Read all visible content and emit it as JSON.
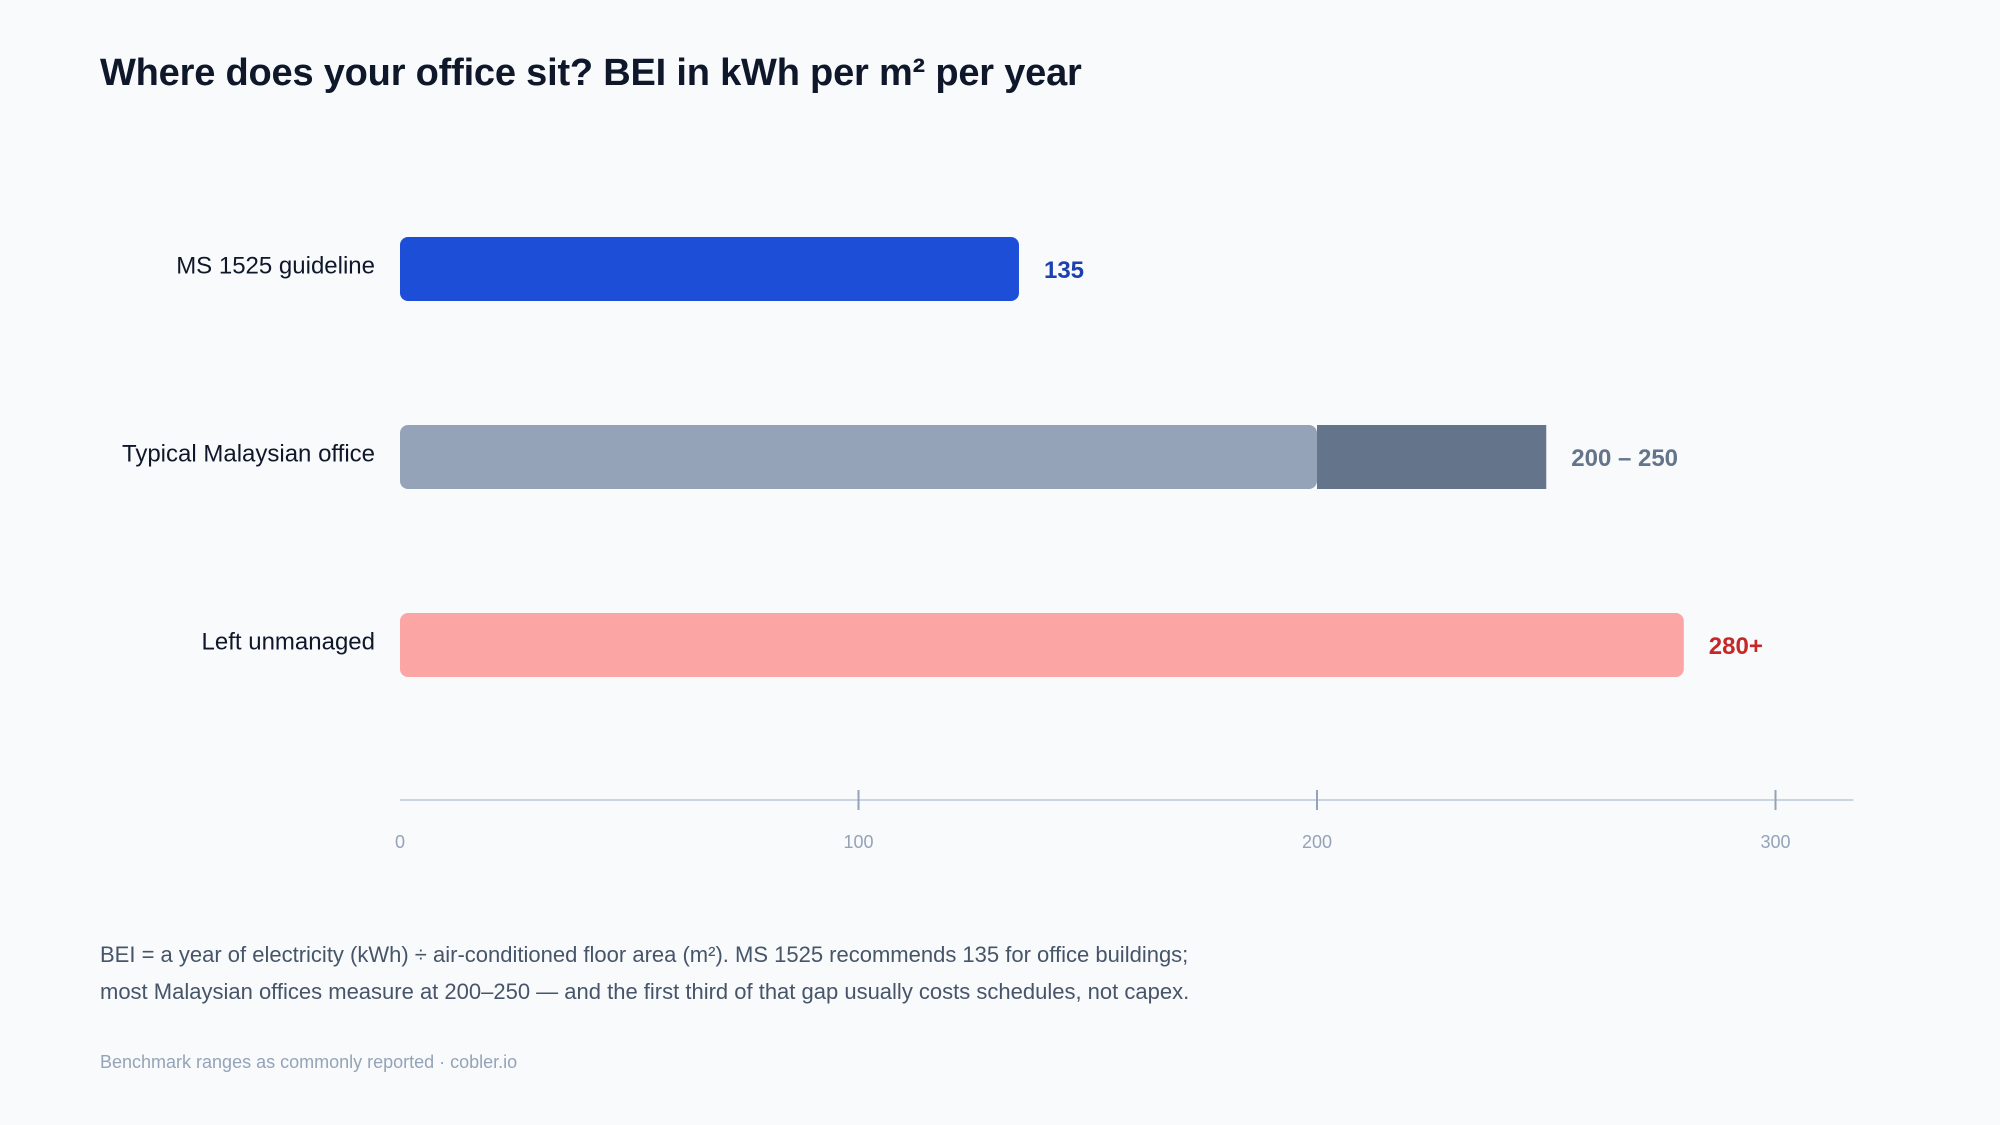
{
  "title": "Where does your office sit? BEI in kWh per m² per year",
  "chart_data": {
    "type": "bar",
    "orientation": "horizontal",
    "title": "Where does your office sit? BEI in kWh per m² per year",
    "xlim": [
      0,
      317
    ],
    "ticks": [
      0,
      100,
      200,
      300
    ],
    "grid": false,
    "bars": [
      {
        "category": "MS 1525 guideline",
        "start": 0,
        "value": 135,
        "label": "135",
        "color": "#1d4ed8",
        "label_color": "#1e40af"
      },
      {
        "category": "Typical Malaysian office",
        "start": 0,
        "value": 200,
        "range_end": 250,
        "label": "200 – 250",
        "color": "#94a3b8",
        "range_color": "#64748b",
        "label_color": "#64748b"
      },
      {
        "category": "Left unmanaged",
        "start": 0,
        "value": 280,
        "label": "280+",
        "color": "#fca5a5",
        "label_color": "#c62828"
      }
    ]
  },
  "note_lines": [
    "BEI = a year of electricity (kWh) ÷ air-conditioned floor area (m²). MS 1525 recommends 135 for office buildings;",
    "most Malaysian offices measure at 200–250 — and the first third of that gap usually costs schedules, not capex."
  ],
  "footer": "Benchmark ranges as commonly reported · cobler.io"
}
